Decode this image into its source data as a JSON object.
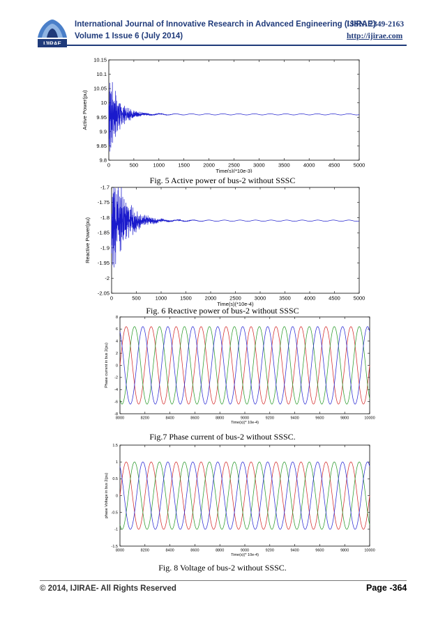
{
  "header": {
    "journal_title": "International Journal of Innovative Research in Advanced Engineering (IJIRAE)",
    "issn": "ISSN: 2349-2163",
    "volume": "Volume 1 Issue 6 (July 2014)",
    "url": "http://ijirae.com",
    "logo_text": "IJIRAE"
  },
  "figures": {
    "fig5": {
      "caption": "Fig. 5 Active power of bus-2 without SSSC"
    },
    "fig6": {
      "caption": "Fig. 6 Reactive power of bus-2 without SSSC"
    },
    "fig7": {
      "caption": "Fig.7 Phase current of bus-2 without SSSC."
    },
    "fig8": {
      "caption": "Fig. 8 Voltage of bus-2 without SSSC."
    }
  },
  "chart_data": [
    {
      "id": "fig5",
      "type": "line",
      "xlabel": "Time(s)(*10e-3)",
      "ylabel": "Active Power(pu)",
      "xlim": [
        0,
        5000
      ],
      "ylim": [
        9.8,
        10.15
      ],
      "xticks": [
        0,
        500,
        1000,
        1500,
        2000,
        2500,
        3000,
        3500,
        4000,
        4500,
        5000
      ],
      "yticks": [
        9.8,
        9.85,
        9.9,
        9.95,
        10,
        10.05,
        10.1,
        10.15
      ],
      "ytick_labels": [
        "9.8",
        "9.85",
        "9.9",
        "9.95",
        "10",
        "10.05",
        "10.1",
        "10.15"
      ],
      "series": [
        {
          "color": "#1a1acc",
          "steady_value": 9.96,
          "initial_amplitude": 0.14,
          "settling_time": 700,
          "ripple": 0.002
        }
      ]
    },
    {
      "id": "fig6",
      "type": "line",
      "xlabel": "Time(s)(*10e-4)",
      "ylabel": "Reactive Power(pu)",
      "xlim": [
        0,
        5000
      ],
      "ylim": [
        -2.05,
        -1.7
      ],
      "xticks": [
        0,
        500,
        1000,
        1500,
        2000,
        2500,
        3000,
        3500,
        4000,
        4500,
        5000
      ],
      "yticks": [
        -2.05,
        -2,
        -1.95,
        -1.9,
        -1.85,
        -1.8,
        -1.75,
        -1.7
      ],
      "ytick_labels": [
        "-2.05",
        "-2",
        "-1.95",
        "-1.9",
        "-1.85",
        "-1.8",
        "-1.75",
        "-1.7"
      ],
      "series": [
        {
          "color": "#1a1acc",
          "steady_value": -1.81,
          "initial_amplitude": 0.2,
          "settling_time": 900,
          "ripple": 0.002
        }
      ]
    },
    {
      "id": "fig7",
      "type": "line",
      "xlabel": "Time(s)(* 10e-4)",
      "ylabel": "Phase current in bus 2(pu)",
      "xlim": [
        8000,
        10000
      ],
      "ylim": [
        -8,
        8
      ],
      "xticks": [
        8000,
        8200,
        8400,
        8600,
        8800,
        9000,
        9200,
        9400,
        9600,
        9800,
        10000
      ],
      "yticks": [
        -8,
        -6,
        -4,
        -2,
        0,
        2,
        4,
        6,
        8
      ],
      "ytick_labels": [
        "-8",
        "-6",
        "-4",
        "-2",
        "0",
        "2",
        "4",
        "6",
        "8"
      ],
      "series": [
        {
          "color": "#d42a2a",
          "amplitude": 6.4,
          "period": 200,
          "phase_deg": 0
        },
        {
          "color": "#2a9a2a",
          "amplitude": 6.4,
          "period": 200,
          "phase_deg": -120
        },
        {
          "color": "#2a2ad4",
          "amplitude": 6.4,
          "period": 200,
          "phase_deg": 120
        }
      ]
    },
    {
      "id": "fig8",
      "type": "line",
      "xlabel": "Time(s)(* 10e-4)",
      "ylabel": "phase Voltage in bus 2(pu)",
      "xlim": [
        8000,
        10000
      ],
      "ylim": [
        -1.5,
        1.5
      ],
      "xticks": [
        8000,
        8200,
        8400,
        8600,
        8800,
        9000,
        9200,
        9400,
        9600,
        9800,
        10000
      ],
      "yticks": [
        -1.5,
        -1,
        -0.5,
        0,
        0.5,
        1,
        1.5
      ],
      "ytick_labels": [
        "-1.5",
        "-1",
        "-0.5",
        "0",
        "0.5",
        "1",
        "1.5"
      ],
      "series": [
        {
          "color": "#d42a2a",
          "amplitude": 1.0,
          "period": 200,
          "phase_deg": 0
        },
        {
          "color": "#2a9a2a",
          "amplitude": 1.0,
          "period": 200,
          "phase_deg": -120
        },
        {
          "color": "#2a2ad4",
          "amplitude": 1.0,
          "period": 200,
          "phase_deg": 120
        }
      ]
    }
  ],
  "footer": {
    "copyright": "© 2014, IJIRAE- All Rights Reserved",
    "page_label": "Page -364"
  }
}
